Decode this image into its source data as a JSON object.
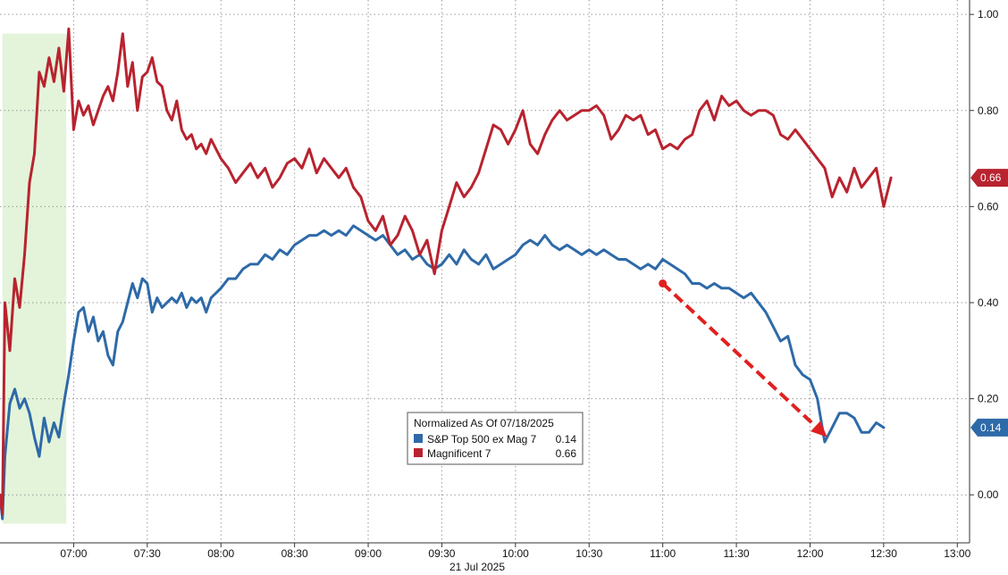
{
  "chart_data": {
    "type": "line",
    "date_label": "21 Jul 2025",
    "x_ticks": [
      "07:00",
      "07:30",
      "08:00",
      "08:30",
      "09:00",
      "09:30",
      "10:00",
      "10:30",
      "11:00",
      "11:30",
      "12:00",
      "12:30",
      "13:00"
    ],
    "y_ticks": [
      0.0,
      0.2,
      0.4,
      0.6,
      0.8,
      1.0
    ],
    "y_tick_labels": [
      "0.00",
      "0.20",
      "0.40",
      "0.60",
      "0.80",
      "1.00"
    ],
    "x_range": [
      "06:30",
      "13:05"
    ],
    "y_range": [
      -0.1,
      1.03
    ],
    "grid": true,
    "premarket_shading": {
      "from": "06:31",
      "to": "06:57",
      "y_from": -0.06,
      "y_to": 0.96
    },
    "legend": {
      "title": "Normalized As Of 07/18/2025",
      "placement": "bottom-center",
      "entries": [
        {
          "name": "S&P Top 500 ex Mag 7",
          "value": "0.14"
        },
        {
          "name": "Magnificent 7",
          "value": "0.66"
        }
      ]
    },
    "series": [
      {
        "name": "S&P Top 500 ex Mag 7",
        "color": "#2e6aa8",
        "last_label": "0.14",
        "points": [
          [
            "06:30",
            0.0
          ],
          [
            "06:31",
            -0.05
          ],
          [
            "06:32",
            0.08
          ],
          [
            "06:34",
            0.19
          ],
          [
            "06:36",
            0.22
          ],
          [
            "06:38",
            0.18
          ],
          [
            "06:40",
            0.2
          ],
          [
            "06:42",
            0.17
          ],
          [
            "06:44",
            0.12
          ],
          [
            "06:46",
            0.08
          ],
          [
            "06:48",
            0.16
          ],
          [
            "06:50",
            0.11
          ],
          [
            "06:52",
            0.15
          ],
          [
            "06:54",
            0.12
          ],
          [
            "06:56",
            0.19
          ],
          [
            "06:58",
            0.25
          ],
          [
            "07:00",
            0.32
          ],
          [
            "07:02",
            0.38
          ],
          [
            "07:04",
            0.39
          ],
          [
            "07:06",
            0.34
          ],
          [
            "07:08",
            0.37
          ],
          [
            "07:10",
            0.32
          ],
          [
            "07:12",
            0.34
          ],
          [
            "07:14",
            0.29
          ],
          [
            "07:16",
            0.27
          ],
          [
            "07:18",
            0.34
          ],
          [
            "07:20",
            0.36
          ],
          [
            "07:22",
            0.4
          ],
          [
            "07:24",
            0.44
          ],
          [
            "07:26",
            0.41
          ],
          [
            "07:28",
            0.45
          ],
          [
            "07:30",
            0.44
          ],
          [
            "07:32",
            0.38
          ],
          [
            "07:34",
            0.41
          ],
          [
            "07:36",
            0.39
          ],
          [
            "07:38",
            0.4
          ],
          [
            "07:40",
            0.41
          ],
          [
            "07:42",
            0.4
          ],
          [
            "07:44",
            0.42
          ],
          [
            "07:46",
            0.39
          ],
          [
            "07:48",
            0.41
          ],
          [
            "07:50",
            0.4
          ],
          [
            "07:52",
            0.41
          ],
          [
            "07:54",
            0.38
          ],
          [
            "07:56",
            0.41
          ],
          [
            "07:58",
            0.42
          ],
          [
            "08:00",
            0.43
          ],
          [
            "08:03",
            0.45
          ],
          [
            "08:06",
            0.45
          ],
          [
            "08:09",
            0.47
          ],
          [
            "08:12",
            0.48
          ],
          [
            "08:15",
            0.48
          ],
          [
            "08:18",
            0.5
          ],
          [
            "08:21",
            0.49
          ],
          [
            "08:24",
            0.51
          ],
          [
            "08:27",
            0.5
          ],
          [
            "08:30",
            0.52
          ],
          [
            "08:33",
            0.53
          ],
          [
            "08:36",
            0.54
          ],
          [
            "08:39",
            0.54
          ],
          [
            "08:42",
            0.55
          ],
          [
            "08:45",
            0.54
          ],
          [
            "08:48",
            0.55
          ],
          [
            "08:51",
            0.54
          ],
          [
            "08:54",
            0.56
          ],
          [
            "08:57",
            0.55
          ],
          [
            "09:00",
            0.54
          ],
          [
            "09:03",
            0.53
          ],
          [
            "09:06",
            0.54
          ],
          [
            "09:09",
            0.52
          ],
          [
            "09:12",
            0.5
          ],
          [
            "09:15",
            0.51
          ],
          [
            "09:18",
            0.49
          ],
          [
            "09:21",
            0.5
          ],
          [
            "09:24",
            0.48
          ],
          [
            "09:27",
            0.47
          ],
          [
            "09:30",
            0.48
          ],
          [
            "09:33",
            0.5
          ],
          [
            "09:36",
            0.48
          ],
          [
            "09:39",
            0.51
          ],
          [
            "09:42",
            0.49
          ],
          [
            "09:45",
            0.48
          ],
          [
            "09:48",
            0.5
          ],
          [
            "09:51",
            0.47
          ],
          [
            "09:54",
            0.48
          ],
          [
            "09:57",
            0.49
          ],
          [
            "10:00",
            0.5
          ],
          [
            "10:03",
            0.52
          ],
          [
            "10:06",
            0.53
          ],
          [
            "10:09",
            0.52
          ],
          [
            "10:12",
            0.54
          ],
          [
            "10:15",
            0.52
          ],
          [
            "10:18",
            0.51
          ],
          [
            "10:21",
            0.52
          ],
          [
            "10:24",
            0.51
          ],
          [
            "10:27",
            0.5
          ],
          [
            "10:30",
            0.51
          ],
          [
            "10:33",
            0.5
          ],
          [
            "10:36",
            0.51
          ],
          [
            "10:39",
            0.5
          ],
          [
            "10:42",
            0.49
          ],
          [
            "10:45",
            0.49
          ],
          [
            "10:48",
            0.48
          ],
          [
            "10:51",
            0.47
          ],
          [
            "10:54",
            0.48
          ],
          [
            "10:57",
            0.47
          ],
          [
            "11:00",
            0.49
          ],
          [
            "11:03",
            0.48
          ],
          [
            "11:06",
            0.47
          ],
          [
            "11:09",
            0.46
          ],
          [
            "11:12",
            0.44
          ],
          [
            "11:15",
            0.44
          ],
          [
            "11:18",
            0.43
          ],
          [
            "11:21",
            0.44
          ],
          [
            "11:24",
            0.43
          ],
          [
            "11:27",
            0.43
          ],
          [
            "11:30",
            0.42
          ],
          [
            "11:33",
            0.41
          ],
          [
            "11:36",
            0.42
          ],
          [
            "11:39",
            0.4
          ],
          [
            "11:42",
            0.38
          ],
          [
            "11:45",
            0.35
          ],
          [
            "11:48",
            0.32
          ],
          [
            "11:51",
            0.33
          ],
          [
            "11:54",
            0.27
          ],
          [
            "11:57",
            0.25
          ],
          [
            "12:00",
            0.24
          ],
          [
            "12:03",
            0.2
          ],
          [
            "12:06",
            0.11
          ],
          [
            "12:09",
            0.14
          ],
          [
            "12:12",
            0.17
          ],
          [
            "12:15",
            0.17
          ],
          [
            "12:18",
            0.16
          ],
          [
            "12:21",
            0.13
          ],
          [
            "12:24",
            0.13
          ],
          [
            "12:27",
            0.15
          ],
          [
            "12:30",
            0.14
          ]
        ]
      },
      {
        "name": "Magnificent 7",
        "color": "#b8232f",
        "last_label": "0.66",
        "points": [
          [
            "06:30",
            0.0
          ],
          [
            "06:31",
            -0.04
          ],
          [
            "06:32",
            0.4
          ],
          [
            "06:34",
            0.3
          ],
          [
            "06:36",
            0.45
          ],
          [
            "06:38",
            0.39
          ],
          [
            "06:40",
            0.5
          ],
          [
            "06:42",
            0.65
          ],
          [
            "06:44",
            0.71
          ],
          [
            "06:46",
            0.88
          ],
          [
            "06:48",
            0.85
          ],
          [
            "06:50",
            0.91
          ],
          [
            "06:52",
            0.86
          ],
          [
            "06:54",
            0.93
          ],
          [
            "06:56",
            0.84
          ],
          [
            "06:58",
            0.97
          ],
          [
            "07:00",
            0.76
          ],
          [
            "07:02",
            0.82
          ],
          [
            "07:04",
            0.79
          ],
          [
            "07:06",
            0.81
          ],
          [
            "07:08",
            0.77
          ],
          [
            "07:10",
            0.8
          ],
          [
            "07:12",
            0.83
          ],
          [
            "07:14",
            0.85
          ],
          [
            "07:16",
            0.82
          ],
          [
            "07:18",
            0.88
          ],
          [
            "07:20",
            0.96
          ],
          [
            "07:22",
            0.85
          ],
          [
            "07:24",
            0.9
          ],
          [
            "07:26",
            0.8
          ],
          [
            "07:28",
            0.87
          ],
          [
            "07:30",
            0.88
          ],
          [
            "07:32",
            0.91
          ],
          [
            "07:34",
            0.86
          ],
          [
            "07:36",
            0.85
          ],
          [
            "07:38",
            0.8
          ],
          [
            "07:40",
            0.78
          ],
          [
            "07:42",
            0.82
          ],
          [
            "07:44",
            0.76
          ],
          [
            "07:46",
            0.74
          ],
          [
            "07:48",
            0.75
          ],
          [
            "07:50",
            0.72
          ],
          [
            "07:52",
            0.73
          ],
          [
            "07:54",
            0.71
          ],
          [
            "07:56",
            0.74
          ],
          [
            "07:58",
            0.72
          ],
          [
            "08:00",
            0.7
          ],
          [
            "08:03",
            0.68
          ],
          [
            "08:06",
            0.65
          ],
          [
            "08:09",
            0.67
          ],
          [
            "08:12",
            0.69
          ],
          [
            "08:15",
            0.66
          ],
          [
            "08:18",
            0.68
          ],
          [
            "08:21",
            0.64
          ],
          [
            "08:24",
            0.66
          ],
          [
            "08:27",
            0.69
          ],
          [
            "08:30",
            0.7
          ],
          [
            "08:33",
            0.68
          ],
          [
            "08:36",
            0.72
          ],
          [
            "08:39",
            0.67
          ],
          [
            "08:42",
            0.7
          ],
          [
            "08:45",
            0.68
          ],
          [
            "08:48",
            0.66
          ],
          [
            "08:51",
            0.68
          ],
          [
            "08:54",
            0.64
          ],
          [
            "08:57",
            0.62
          ],
          [
            "09:00",
            0.57
          ],
          [
            "09:03",
            0.55
          ],
          [
            "09:06",
            0.58
          ],
          [
            "09:09",
            0.52
          ],
          [
            "09:12",
            0.54
          ],
          [
            "09:15",
            0.58
          ],
          [
            "09:18",
            0.55
          ],
          [
            "09:21",
            0.5
          ],
          [
            "09:24",
            0.53
          ],
          [
            "09:27",
            0.46
          ],
          [
            "09:30",
            0.55
          ],
          [
            "09:33",
            0.6
          ],
          [
            "09:36",
            0.65
          ],
          [
            "09:39",
            0.62
          ],
          [
            "09:42",
            0.64
          ],
          [
            "09:45",
            0.67
          ],
          [
            "09:48",
            0.72
          ],
          [
            "09:51",
            0.77
          ],
          [
            "09:54",
            0.76
          ],
          [
            "09:57",
            0.73
          ],
          [
            "10:00",
            0.76
          ],
          [
            "10:03",
            0.8
          ],
          [
            "10:06",
            0.73
          ],
          [
            "10:09",
            0.71
          ],
          [
            "10:12",
            0.75
          ],
          [
            "10:15",
            0.78
          ],
          [
            "10:18",
            0.8
          ],
          [
            "10:21",
            0.78
          ],
          [
            "10:24",
            0.79
          ],
          [
            "10:27",
            0.8
          ],
          [
            "10:30",
            0.8
          ],
          [
            "10:33",
            0.81
          ],
          [
            "10:36",
            0.79
          ],
          [
            "10:39",
            0.74
          ],
          [
            "10:42",
            0.76
          ],
          [
            "10:45",
            0.79
          ],
          [
            "10:48",
            0.78
          ],
          [
            "10:51",
            0.79
          ],
          [
            "10:54",
            0.75
          ],
          [
            "10:57",
            0.76
          ],
          [
            "11:00",
            0.72
          ],
          [
            "11:03",
            0.73
          ],
          [
            "11:06",
            0.72
          ],
          [
            "11:09",
            0.74
          ],
          [
            "11:12",
            0.75
          ],
          [
            "11:15",
            0.8
          ],
          [
            "11:18",
            0.82
          ],
          [
            "11:21",
            0.78
          ],
          [
            "11:24",
            0.83
          ],
          [
            "11:27",
            0.81
          ],
          [
            "11:30",
            0.82
          ],
          [
            "11:33",
            0.8
          ],
          [
            "11:36",
            0.79
          ],
          [
            "11:39",
            0.8
          ],
          [
            "11:42",
            0.8
          ],
          [
            "11:45",
            0.79
          ],
          [
            "11:48",
            0.75
          ],
          [
            "11:51",
            0.74
          ],
          [
            "11:54",
            0.76
          ],
          [
            "11:57",
            0.74
          ],
          [
            "12:00",
            0.72
          ],
          [
            "12:03",
            0.7
          ],
          [
            "12:06",
            0.68
          ],
          [
            "12:09",
            0.62
          ],
          [
            "12:12",
            0.66
          ],
          [
            "12:15",
            0.63
          ],
          [
            "12:18",
            0.68
          ],
          [
            "12:21",
            0.64
          ],
          [
            "12:24",
            0.66
          ],
          [
            "12:27",
            0.68
          ],
          [
            "12:30",
            0.6
          ],
          [
            "12:33",
            0.66
          ]
        ]
      }
    ],
    "annotation": {
      "type": "arrow",
      "color": "#e02020",
      "from": [
        "11:00",
        0.44
      ],
      "to": [
        "12:07",
        0.12
      ]
    }
  }
}
